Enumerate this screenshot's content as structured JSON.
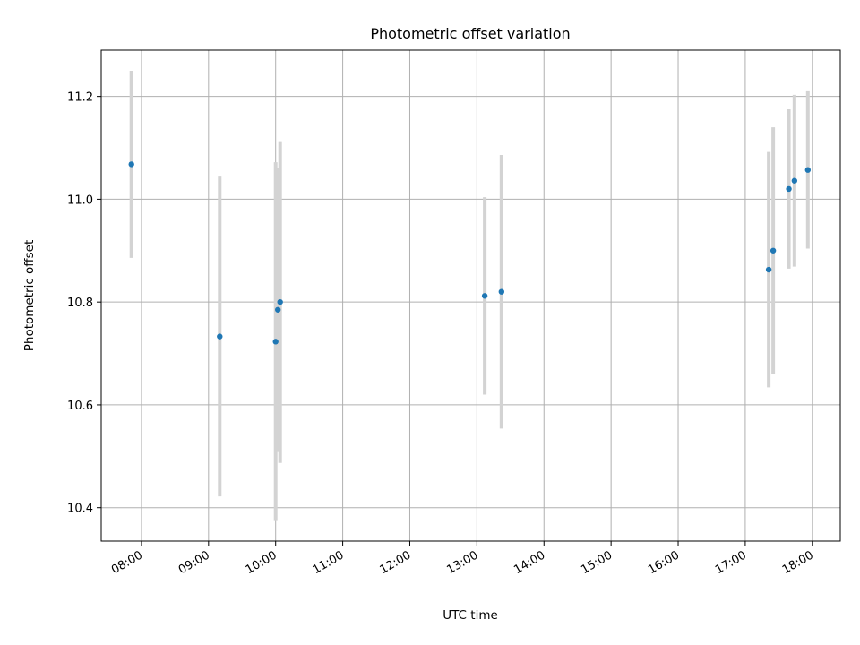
{
  "chart_data": {
    "type": "scatter",
    "title": "Photometric offset variation",
    "xlabel": "UTC time",
    "ylabel": "Photometric offset",
    "x_ticks": [
      "08:00",
      "09:00",
      "10:00",
      "11:00",
      "12:00",
      "13:00",
      "14:00",
      "15:00",
      "16:00",
      "17:00",
      "18:00"
    ],
    "y_ticks": [
      "10.4",
      "10.6",
      "10.8",
      "11.0",
      "11.2"
    ],
    "xlim": [
      "07:24",
      "18:25"
    ],
    "ylim": [
      10.335,
      11.29
    ],
    "grid": true,
    "colors": {
      "point": "#1f77b4",
      "errorbar": "#d3d3d3",
      "grid": "#b0b0b0"
    },
    "points": [
      {
        "x": "07:51",
        "y": 11.068,
        "yerr": 0.182
      },
      {
        "x": "09:10",
        "y": 10.733,
        "yerr": 0.311
      },
      {
        "x": "10:00",
        "y": 10.723,
        "yerr": 0.349
      },
      {
        "x": "10:02",
        "y": 10.785,
        "yerr": 0.275
      },
      {
        "x": "10:04",
        "y": 10.8,
        "yerr": 0.313
      },
      {
        "x": "13:07",
        "y": 10.812,
        "yerr": 0.192
      },
      {
        "x": "13:22",
        "y": 10.82,
        "yerr": 0.266
      },
      {
        "x": "17:21",
        "y": 10.863,
        "yerr": 0.229
      },
      {
        "x": "17:25",
        "y": 10.9,
        "yerr": 0.24
      },
      {
        "x": "17:39",
        "y": 11.02,
        "yerr": 0.155
      },
      {
        "x": "17:44",
        "y": 11.036,
        "yerr": 0.167
      },
      {
        "x": "17:56",
        "y": 11.057,
        "yerr": 0.153
      }
    ]
  }
}
